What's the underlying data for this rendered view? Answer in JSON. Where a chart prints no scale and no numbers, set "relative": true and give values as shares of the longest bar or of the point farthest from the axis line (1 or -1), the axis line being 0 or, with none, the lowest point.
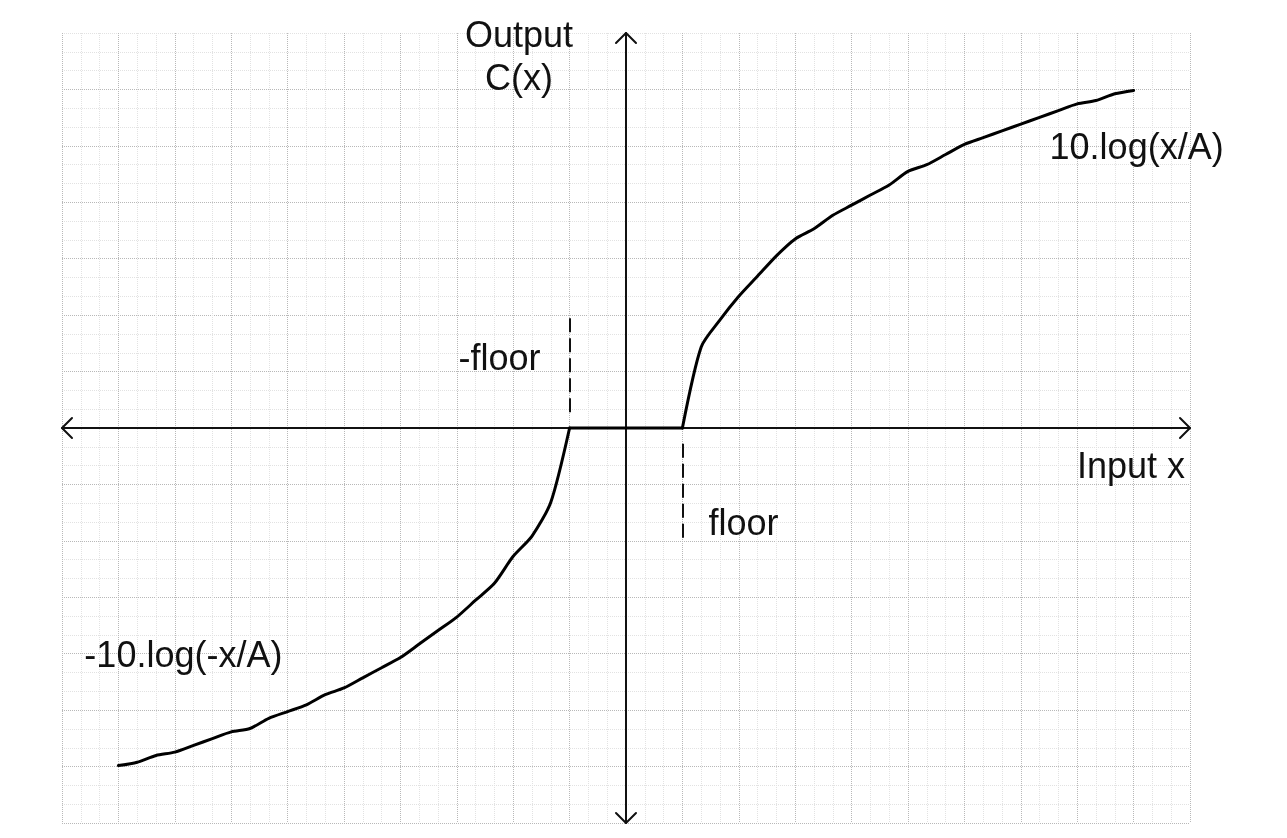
{
  "chart_data": {
    "type": "line",
    "xlabel": "Input x",
    "ylabel": "Output C(x)",
    "relative": true,
    "grid": true,
    "marker": "none",
    "categories": [
      null,
      null,
      null,
      null,
      null,
      null,
      null,
      null,
      null,
      null,
      null,
      null,
      null,
      null,
      null,
      null,
      null,
      null,
      null,
      null,
      null,
      null,
      null,
      null,
      null,
      null,
      null,
      null,
      null,
      null,
      null,
      null,
      null,
      null,
      null,
      null,
      null,
      null,
      null,
      null,
      null,
      null,
      null,
      null,
      null,
      null,
      null,
      null,
      null,
      null,
      null,
      null,
      null,
      null,
      null,
      null,
      null,
      null,
      null,
      null,
      null
    ],
    "series": [
      {
        "name": "-10.log(-x/A)",
        "color": "#000000",
        "values": [
          null,
          null,
          null,
          -1,
          -0.99,
          -0.97,
          -0.96,
          -0.94,
          -0.92,
          -0.9,
          -0.89,
          -0.86,
          -0.84,
          -0.82,
          -0.79,
          -0.77,
          -0.74,
          -0.71,
          -0.68,
          -0.64,
          -0.6,
          -0.56,
          -0.51,
          -0.46,
          -0.38,
          -0.32,
          -0.22,
          0,
          null,
          null,
          null,
          null,
          null,
          null,
          null,
          null,
          null,
          null,
          null,
          null,
          null,
          null,
          null,
          null,
          null,
          null,
          null,
          null,
          null,
          null,
          null,
          null,
          null,
          null,
          null,
          null,
          null,
          null,
          null,
          null,
          null
        ]
      },
      {
        "color": "#000000",
        "values": [
          null,
          null,
          null,
          null,
          null,
          null,
          null,
          null,
          null,
          null,
          null,
          null,
          null,
          null,
          null,
          null,
          null,
          null,
          null,
          null,
          null,
          null,
          null,
          null,
          null,
          null,
          null,
          0,
          0,
          0,
          0,
          0,
          0,
          0,
          null,
          null,
          null,
          null,
          null,
          null,
          null,
          null,
          null,
          null,
          null,
          null,
          null,
          null,
          null,
          null,
          null,
          null,
          null,
          null,
          null,
          null,
          null,
          null,
          null,
          null,
          null
        ]
      },
      {
        "name": "10.log(x/A)",
        "color": "#000000",
        "values": [
          null,
          null,
          null,
          null,
          null,
          null,
          null,
          null,
          null,
          null,
          null,
          null,
          null,
          null,
          null,
          null,
          null,
          null,
          null,
          null,
          null,
          null,
          null,
          null,
          null,
          null,
          null,
          null,
          null,
          null,
          null,
          null,
          null,
          0,
          0.24,
          0.32,
          0.39,
          0.45,
          0.51,
          0.56,
          0.59,
          0.63,
          0.66,
          0.69,
          0.72,
          0.76,
          0.78,
          0.81,
          0.84,
          0.86,
          0.88,
          0.9,
          0.92,
          0.94,
          0.96,
          0.97,
          0.99,
          1,
          null,
          null,
          null
        ]
      }
    ],
    "annotations": [
      "-floor",
      "floor"
    ]
  }
}
